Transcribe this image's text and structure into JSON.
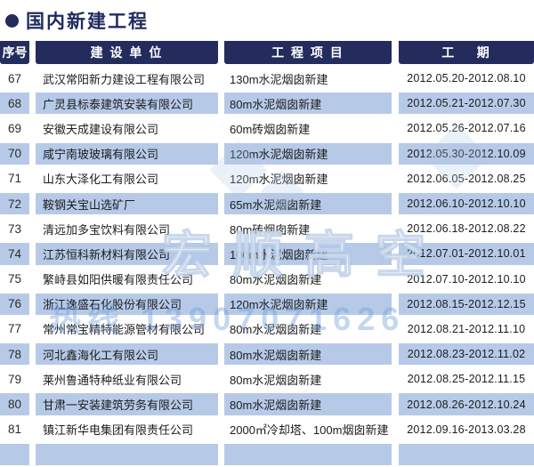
{
  "page": {
    "title": "国内新建工程"
  },
  "colors": {
    "navy": "#232c5d",
    "row_blue": "#b6cae8",
    "background": "#ffffff",
    "text": "#1c1c1c"
  },
  "watermark": {
    "line1": "宏顺高空",
    "line2": "热线 13907071626"
  },
  "table": {
    "columns": [
      "序号",
      "建 设 单 位",
      "工 程 项 目",
      "工    期"
    ],
    "rows": [
      {
        "no": "67",
        "company": "武汉常阳新力建设工程有限公司",
        "project": "130m水泥烟囱新建",
        "period": "2012.05.20-2012.08.10"
      },
      {
        "no": "68",
        "company": "广灵县标泰建筑安装有限公司",
        "project": "80m水泥烟囱新建",
        "period": "2012.05.21-2012.07.30"
      },
      {
        "no": "69",
        "company": "安徽天成建设有限公司",
        "project": "60m砖烟囱新建",
        "period": "2012.05.26-2012.07.16"
      },
      {
        "no": "70",
        "company": "咸宁南玻玻璃有限公司",
        "project": "120m水泥烟囱新建",
        "period": "2012.05.30-2012.10.09"
      },
      {
        "no": "71",
        "company": "山东大泽化工有限公司",
        "project": "120m水泥烟囱新建",
        "period": "2012.06.05-2012.08.25"
      },
      {
        "no": "72",
        "company": "鞍钢关宝山选矿厂",
        "project": "65m水泥烟囱新建",
        "period": "2012.06.10-2012.10.10"
      },
      {
        "no": "73",
        "company": "清远加多宝饮料有限公司",
        "project": "80m砖烟囱新建",
        "period": "2012.06.18-2012.08.22"
      },
      {
        "no": "74",
        "company": "江苏恒科新材料有限公司",
        "project": "100m水泥烟囱新建",
        "period": "2012.07.01-2012.10.01"
      },
      {
        "no": "75",
        "company": "繁峙县如阳供暖有限责任公司",
        "project": "80m水泥烟囱新建",
        "period": "2012.07.10-2012.10.10"
      },
      {
        "no": "76",
        "company": "浙江逸盛石化股份有限公司",
        "project": "120m水泥烟囱新建",
        "period": "2012.08.15-2012.12.15"
      },
      {
        "no": "77",
        "company": "常州常宝精特能源管材有限公司",
        "project": "80m水泥烟囱新建",
        "period": "2012.08.21-2012.11.10"
      },
      {
        "no": "78",
        "company": "河北鑫海化工有限公司",
        "project": "80m水泥烟囱新建",
        "period": "2012.08.23-2012.11.02"
      },
      {
        "no": "79",
        "company": "莱州鲁通特种纸业有限公司",
        "project": "80m水泥烟囱新建",
        "period": "2012.08.25-2012.11.15"
      },
      {
        "no": "80",
        "company": "甘肃一安装建筑劳务有限公司",
        "project": "80m水泥烟囱新建",
        "period": "2012.08.26-2012.10.24"
      },
      {
        "no": "81",
        "company": "镇江新华电集团有限责任公司",
        "project": "2000㎡冷却塔、100m烟囱新建",
        "period": "2012.09.16-2013.03.28"
      }
    ]
  }
}
